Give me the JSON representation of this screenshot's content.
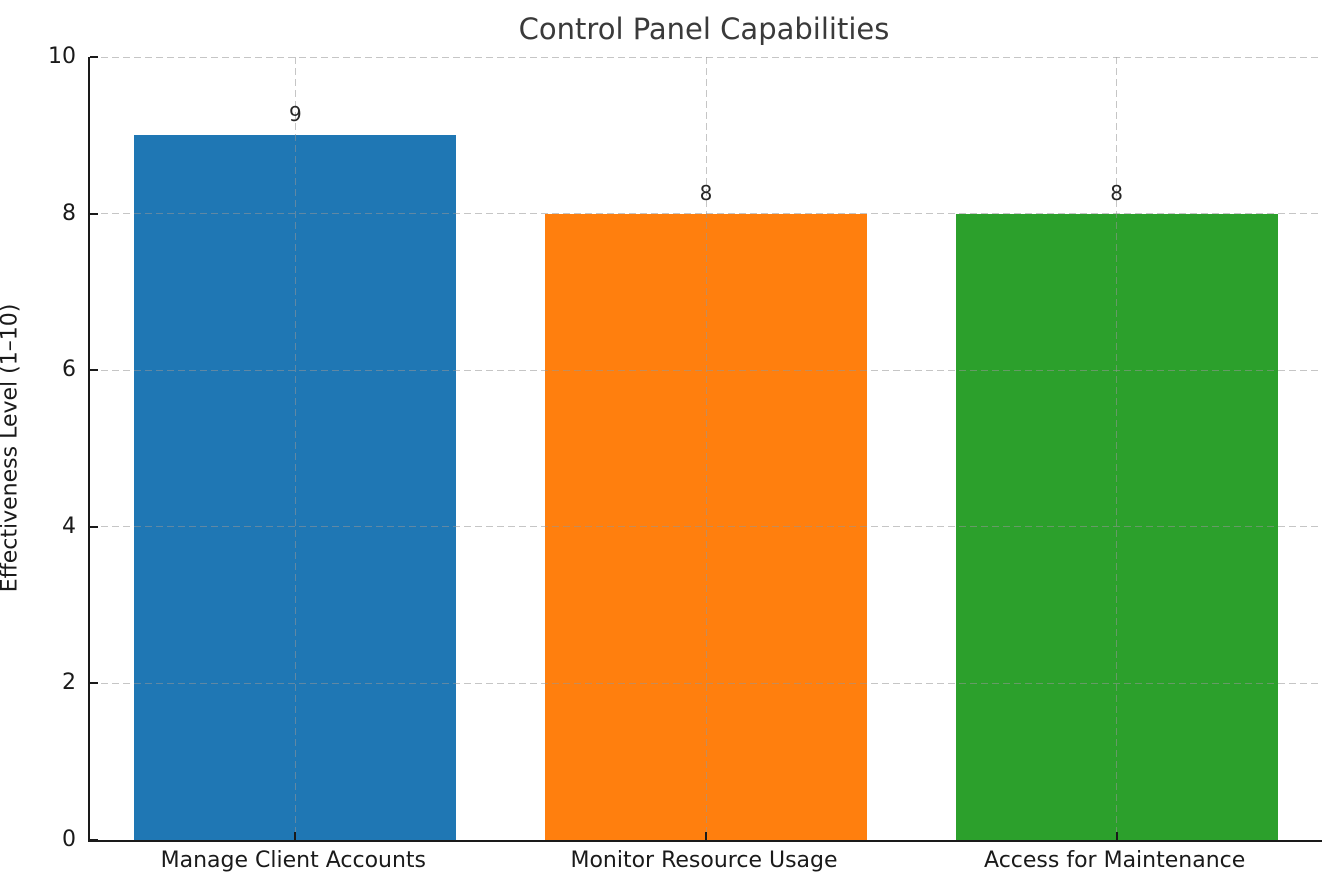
{
  "chart_data": {
    "type": "bar",
    "title": "Control Panel Capabilities",
    "xlabel": "",
    "ylabel": "Effectiveness Level (1–10)",
    "categories": [
      "Manage Client Accounts",
      "Monitor Resource Usage",
      "Access for Maintenance"
    ],
    "values": [
      9,
      8,
      8
    ],
    "value_labels": [
      "9",
      "8",
      "8"
    ],
    "bar_colors": [
      "#1f77b4",
      "#ff7f0e",
      "#2ca02c"
    ],
    "ylim": [
      0,
      10
    ],
    "y_ticks": [
      "0",
      "2",
      "4",
      "6",
      "8",
      "10"
    ],
    "grid": "dashed gridlines on both axes, drawn above bars",
    "legend_position": "none",
    "spine_color": "#1a1a1a",
    "title_color": "#3a3a3a",
    "tick_label_color": "#1a1a1a"
  }
}
